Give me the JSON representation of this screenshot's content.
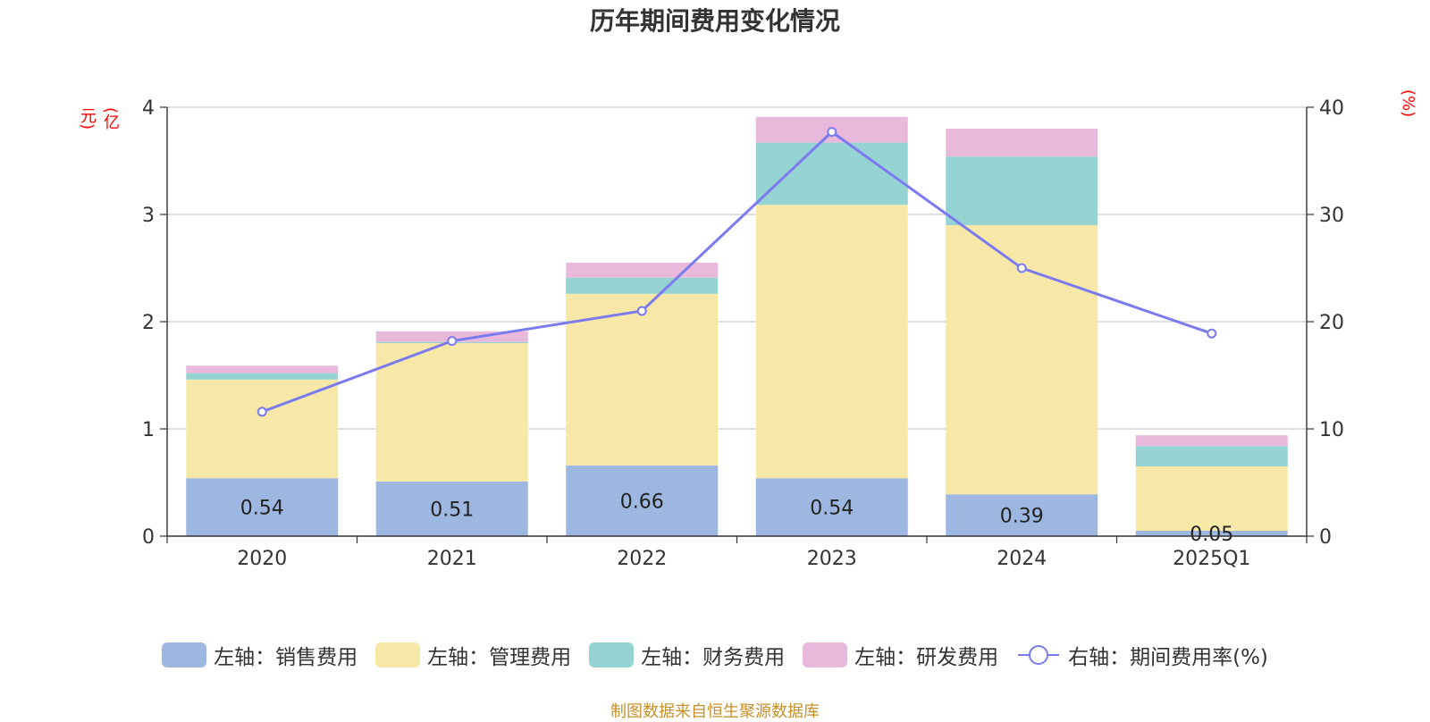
{
  "title": "历年期间费用变化情况",
  "units": {
    "left": "(亿元)",
    "right": "(%)"
  },
  "source": "制图数据来自恒生聚源数据库",
  "chart_data": {
    "type": "bar",
    "stacked": true,
    "categories": [
      "2020",
      "2021",
      "2022",
      "2023",
      "2024",
      "2025Q1"
    ],
    "left_axis": {
      "ticks": [
        "0",
        "1",
        "2",
        "3",
        "4"
      ],
      "ylim": [
        0,
        4
      ]
    },
    "right_axis": {
      "ticks": [
        "0",
        "10",
        "20",
        "30",
        "40"
      ],
      "ylim": [
        0,
        40
      ]
    },
    "series": [
      {
        "name": "左轴：销售费用",
        "type": "bar",
        "axis": "left",
        "color": "#9db7e0",
        "values": [
          0.54,
          0.51,
          0.66,
          0.54,
          0.39,
          0.05
        ],
        "labels": [
          "0.54",
          "0.51",
          "0.66",
          "0.54",
          "0.39",
          "0.05"
        ]
      },
      {
        "name": "左轴：管理费用",
        "type": "bar",
        "axis": "left",
        "color": "#f7e8a8",
        "values": [
          0.92,
          1.29,
          1.6,
          2.55,
          2.51,
          0.6
        ]
      },
      {
        "name": "左轴：财务费用",
        "type": "bar",
        "axis": "left",
        "color": "#96d4d4",
        "values": [
          0.06,
          0.01,
          0.15,
          0.58,
          0.64,
          0.19
        ]
      },
      {
        "name": "左轴：研发费用",
        "type": "bar",
        "axis": "left",
        "color": "#e8b9da",
        "values": [
          0.07,
          0.1,
          0.14,
          0.24,
          0.26,
          0.1
        ]
      },
      {
        "name": "右轴：期间费用率(%)",
        "type": "line",
        "axis": "right",
        "color": "#7b7bf0",
        "values": [
          11.6,
          18.2,
          21.0,
          37.7,
          25.0,
          18.9
        ]
      }
    ],
    "grid": true,
    "legend_position": "bottom"
  }
}
